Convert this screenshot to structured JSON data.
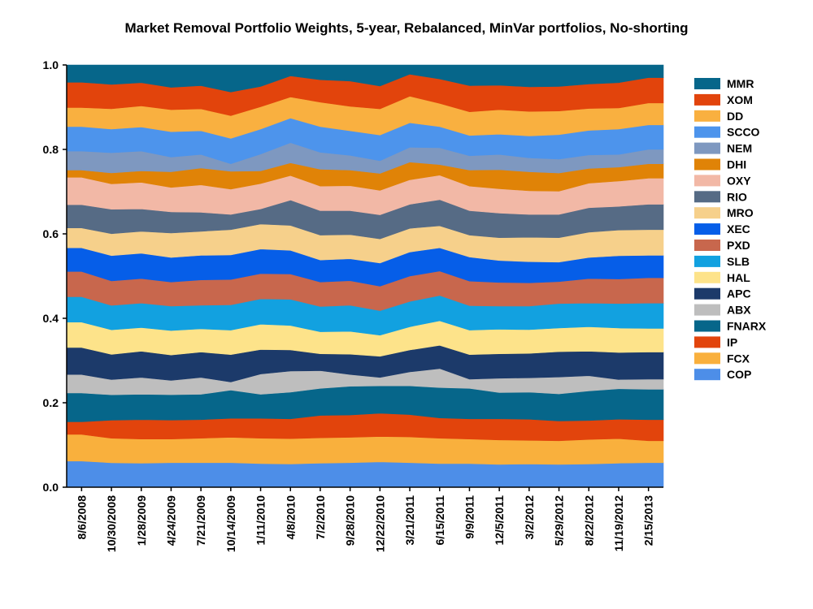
{
  "chart_data": {
    "type": "area",
    "stacked": true,
    "title": "Market Removal Portfolio Weights, 5-year, Rebalanced, MinVar portfolios, No-shorting",
    "xlabel": "",
    "ylabel": "",
    "ylim": [
      0,
      1
    ],
    "yticks": [
      "0.0",
      "0.2",
      "0.4",
      "0.6",
      "0.8",
      "1.0"
    ],
    "grid": false,
    "legend_position": "right",
    "x": [
      "8/6/2008",
      "10/30/2008",
      "1/28/2009",
      "4/24/2009",
      "7/21/2009",
      "10/14/2009",
      "1/11/2010",
      "4/8/2010",
      "7/2/2010",
      "9/28/2010",
      "12/22/2010",
      "3/21/2011",
      "6/15/2011",
      "9/9/2011",
      "12/5/2011",
      "3/2/2012",
      "5/29/2012",
      "8/22/2012",
      "11/19/2012",
      "2/15/2013"
    ],
    "series": [
      {
        "name": "COP",
        "color": "#4d8ee8",
        "values": [
          0.062,
          0.058,
          0.057,
          0.058,
          0.058,
          0.058,
          0.056,
          0.055,
          0.057,
          0.058,
          0.06,
          0.058,
          0.056,
          0.056,
          0.054,
          0.055,
          0.054,
          0.055,
          0.057,
          0.058
        ]
      },
      {
        "name": "FCX",
        "color": "#f9b03d",
        "values": [
          0.063,
          0.058,
          0.057,
          0.056,
          0.058,
          0.06,
          0.06,
          0.06,
          0.06,
          0.06,
          0.06,
          0.061,
          0.06,
          0.058,
          0.058,
          0.056,
          0.056,
          0.058,
          0.058,
          0.052
        ]
      },
      {
        "name": "IP",
        "color": "#e2440c",
        "values": [
          0.03,
          0.043,
          0.046,
          0.045,
          0.044,
          0.045,
          0.047,
          0.047,
          0.053,
          0.053,
          0.055,
          0.053,
          0.048,
          0.048,
          0.05,
          0.05,
          0.047,
          0.045,
          0.046,
          0.05
        ]
      },
      {
        "name": "FNARX",
        "color": "#06668a",
        "values": [
          0.068,
          0.06,
          0.06,
          0.06,
          0.06,
          0.067,
          0.057,
          0.063,
          0.064,
          0.068,
          0.065,
          0.068,
          0.072,
          0.072,
          0.062,
          0.064,
          0.064,
          0.07,
          0.072,
          0.072
        ]
      },
      {
        "name": "ABX",
        "color": "#bebebe",
        "values": [
          0.044,
          0.036,
          0.04,
          0.034,
          0.04,
          0.019,
          0.048,
          0.05,
          0.042,
          0.028,
          0.02,
          0.033,
          0.045,
          0.022,
          0.034,
          0.034,
          0.04,
          0.036,
          0.022,
          0.024
        ]
      },
      {
        "name": "APC",
        "color": "#1c3a6a",
        "values": [
          0.064,
          0.06,
          0.062,
          0.06,
          0.06,
          0.065,
          0.058,
          0.05,
          0.04,
          0.048,
          0.05,
          0.052,
          0.055,
          0.058,
          0.058,
          0.058,
          0.06,
          0.058,
          0.064,
          0.064
        ]
      },
      {
        "name": "HAL",
        "color": "#fde38a",
        "values": [
          0.06,
          0.058,
          0.056,
          0.058,
          0.055,
          0.058,
          0.06,
          0.058,
          0.052,
          0.054,
          0.05,
          0.055,
          0.058,
          0.058,
          0.058,
          0.056,
          0.056,
          0.058,
          0.058,
          0.056
        ]
      },
      {
        "name": "SLB",
        "color": "#12a1e0",
        "values": [
          0.06,
          0.058,
          0.058,
          0.058,
          0.056,
          0.06,
          0.06,
          0.062,
          0.06,
          0.062,
          0.058,
          0.06,
          0.06,
          0.058,
          0.055,
          0.056,
          0.058,
          0.056,
          0.058,
          0.06
        ]
      },
      {
        "name": "PXD",
        "color": "#c8674d",
        "values": [
          0.06,
          0.058,
          0.058,
          0.057,
          0.06,
          0.06,
          0.06,
          0.06,
          0.058,
          0.058,
          0.058,
          0.06,
          0.058,
          0.058,
          0.056,
          0.055,
          0.052,
          0.058,
          0.058,
          0.06
        ]
      },
      {
        "name": "XEC",
        "color": "#065ee8",
        "values": [
          0.056,
          0.06,
          0.06,
          0.058,
          0.058,
          0.058,
          0.058,
          0.056,
          0.052,
          0.052,
          0.055,
          0.057,
          0.055,
          0.057,
          0.052,
          0.05,
          0.046,
          0.05,
          0.055,
          0.053
        ]
      },
      {
        "name": "MRO",
        "color": "#f6d08b",
        "values": [
          0.047,
          0.052,
          0.052,
          0.058,
          0.057,
          0.06,
          0.059,
          0.059,
          0.059,
          0.057,
          0.057,
          0.056,
          0.052,
          0.052,
          0.054,
          0.058,
          0.058,
          0.06,
          0.061,
          0.061
        ]
      },
      {
        "name": "RIO",
        "color": "#566b85",
        "values": [
          0.055,
          0.058,
          0.053,
          0.05,
          0.045,
          0.036,
          0.036,
          0.06,
          0.058,
          0.057,
          0.057,
          0.057,
          0.062,
          0.058,
          0.058,
          0.054,
          0.055,
          0.058,
          0.056,
          0.06
        ]
      },
      {
        "name": "OXY",
        "color": "#f2b8a6",
        "values": [
          0.065,
          0.06,
          0.063,
          0.058,
          0.065,
          0.06,
          0.06,
          0.058,
          0.058,
          0.059,
          0.058,
          0.058,
          0.058,
          0.058,
          0.058,
          0.056,
          0.055,
          0.058,
          0.06,
          0.062
        ]
      },
      {
        "name": "DHI",
        "color": "#e08307",
        "values": [
          0.017,
          0.026,
          0.027,
          0.037,
          0.04,
          0.042,
          0.03,
          0.03,
          0.04,
          0.037,
          0.04,
          0.042,
          0.025,
          0.038,
          0.045,
          0.045,
          0.043,
          0.035,
          0.033,
          0.034
        ]
      },
      {
        "name": "NEM",
        "color": "#7e98c0",
        "values": [
          0.045,
          0.048,
          0.047,
          0.035,
          0.032,
          0.018,
          0.04,
          0.048,
          0.04,
          0.035,
          0.03,
          0.035,
          0.04,
          0.034,
          0.036,
          0.033,
          0.033,
          0.032,
          0.03,
          0.034
        ]
      },
      {
        "name": "SCCO",
        "color": "#4d94ec",
        "values": [
          0.058,
          0.056,
          0.057,
          0.06,
          0.056,
          0.06,
          0.059,
          0.058,
          0.061,
          0.058,
          0.061,
          0.058,
          0.05,
          0.048,
          0.048,
          0.052,
          0.058,
          0.058,
          0.06,
          0.058
        ]
      },
      {
        "name": "DD",
        "color": "#f9b040",
        "values": [
          0.045,
          0.048,
          0.05,
          0.052,
          0.052,
          0.054,
          0.053,
          0.05,
          0.058,
          0.058,
          0.062,
          0.063,
          0.055,
          0.056,
          0.058,
          0.058,
          0.056,
          0.052,
          0.05,
          0.052
        ]
      },
      {
        "name": "XOM",
        "color": "#e2440c",
        "values": [
          0.06,
          0.058,
          0.055,
          0.053,
          0.055,
          0.056,
          0.048,
          0.05,
          0.053,
          0.06,
          0.054,
          0.052,
          0.058,
          0.062,
          0.058,
          0.058,
          0.058,
          0.058,
          0.06,
          0.06
        ]
      },
      {
        "name": "MMR",
        "color": "#06668a",
        "values": [
          0.041,
          0.046,
          0.042,
          0.053,
          0.049,
          0.064,
          0.051,
          0.026,
          0.035,
          0.038,
          0.05,
          0.022,
          0.033,
          0.049,
          0.048,
          0.052,
          0.051,
          0.045,
          0.042,
          0.03
        ]
      }
    ]
  }
}
